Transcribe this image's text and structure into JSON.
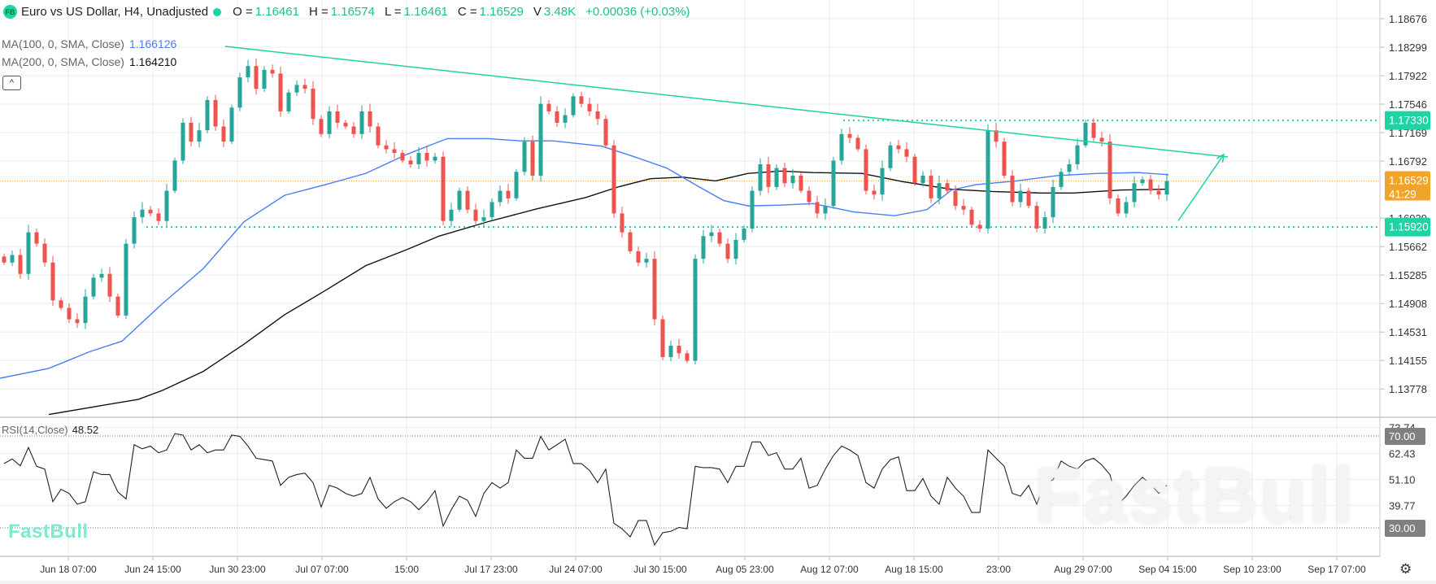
{
  "header": {
    "badge": "FB",
    "title": "Euro vs US Dollar, H4, Unadjusted",
    "status_color": "#1fd3a5",
    "ohlc": [
      {
        "label": "O =",
        "value": "1.16461"
      },
      {
        "label": "H =",
        "value": "1.16574"
      },
      {
        "label": "L =",
        "value": "1.16461"
      },
      {
        "label": "C =",
        "value": "1.16529"
      }
    ],
    "volume_label": "V",
    "volume": "3.48K",
    "change": "+0.00036 (+0.03%)"
  },
  "indicators": [
    {
      "label": "MA(100, 0, SMA, Close)",
      "value": "1.166126",
      "color": "#4a7cf7"
    },
    {
      "label": "MA(200, 0, SMA, Close)",
      "value": "1.164210",
      "color": "#111111"
    }
  ],
  "collapse_icon": "chevron-up-icon",
  "collapse_glyph": "^",
  "rsi": {
    "label": "RSI(14,Close)",
    "value": "48.52"
  },
  "logo": "FastBull",
  "watermark": "FastBull",
  "settings_icon": "gear-icon",
  "settings_glyph": "⚙",
  "colors": {
    "up": "#26a69a",
    "down": "#ef5350",
    "ma100": "#4a7cf7",
    "ma200": "#111111",
    "drawing": "#1fd3a5",
    "current_price": "#f2a32a",
    "rsi_level_badge": "#808080",
    "grid": "#ececec"
  },
  "chart_data": {
    "type": "candlestick",
    "title": "Euro vs US Dollar, H4, Unadjusted",
    "y_ticks": [
      "1.18676",
      "1.18299",
      "1.17922",
      "1.17546",
      "1.17169",
      "1.16792",
      "1.16039",
      "1.15662",
      "1.15285",
      "1.14908",
      "1.14531",
      "1.14155",
      "1.13778"
    ],
    "x_ticks": [
      "Jun 18 07:00",
      "Jun 24 15:00",
      "Jun 30 23:00",
      "Jul 07 07:00",
      "15:00",
      "Jul 17 23:00",
      "Jul 24 07:00",
      "Jul 30 15:00",
      "Aug 05 23:00",
      "Aug 12 07:00",
      "Aug 18 15:00",
      "23:00",
      "Aug 29 07:00",
      "Sep 04 15:00",
      "Sep 10 23:00",
      "Sep 17 07:00"
    ],
    "closes": [
      1.1545,
      1.1555,
      1.153,
      1.1585,
      1.157,
      1.1545,
      1.1495,
      1.1485,
      1.147,
      1.1465,
      1.15,
      1.1525,
      1.153,
      1.15,
      1.1475,
      1.157,
      1.1605,
      1.1615,
      1.161,
      1.16,
      1.164,
      1.168,
      1.173,
      1.1705,
      1.172,
      1.176,
      1.1725,
      1.1705,
      1.175,
      1.179,
      1.1805,
      1.1775,
      1.18,
      1.1795,
      1.1745,
      1.177,
      1.178,
      1.1775,
      1.1735,
      1.1715,
      1.1745,
      1.173,
      1.1725,
      1.1715,
      1.1745,
      1.1725,
      1.17,
      1.1695,
      1.169,
      1.168,
      1.1675,
      1.169,
      1.168,
      1.1685,
      1.16,
      1.1615,
      1.164,
      1.1615,
      1.16,
      1.1605,
      1.1625,
      1.164,
      1.163,
      1.1665,
      1.1705,
      1.166,
      1.1755,
      1.1745,
      1.173,
      1.174,
      1.1765,
      1.1755,
      1.1745,
      1.1735,
      1.17,
      1.161,
      1.1585,
      1.156,
      1.1545,
      1.155,
      1.147,
      1.142,
      1.1435,
      1.1425,
      1.1415,
      1.155,
      1.158,
      1.1585,
      1.157,
      1.155,
      1.1575,
      1.159,
      1.164,
      1.1675,
      1.1645,
      1.167,
      1.165,
      1.166,
      1.164,
      1.1625,
      1.161,
      1.162,
      1.168,
      1.1715,
      1.171,
      1.1695,
      1.164,
      1.1635,
      1.167,
      1.17,
      1.1695,
      1.1685,
      1.165,
      1.166,
      1.163,
      1.165,
      1.164,
      1.162,
      1.1615,
      1.1595,
      1.159,
      1.172,
      1.1705,
      1.166,
      1.1625,
      1.164,
      1.162,
      1.159,
      1.1605,
      1.1645,
      1.1665,
      1.1675,
      1.17,
      1.173,
      1.171,
      1.1705,
      1.163,
      1.161,
      1.1625,
      1.165,
      1.1655,
      1.164,
      1.1635,
      1.16529
    ],
    "ma100": [
      [
        -0.5,
        1.1392
      ],
      [
        5.5,
        1.1405
      ],
      [
        10.5,
        1.1427
      ],
      [
        14.5,
        1.1441
      ],
      [
        19.5,
        1.1491
      ],
      [
        24.5,
        1.1537
      ],
      [
        29.5,
        1.1599
      ],
      [
        34.5,
        1.1634
      ],
      [
        39.5,
        1.1648
      ],
      [
        44.5,
        1.1663
      ],
      [
        49.5,
        1.1688
      ],
      [
        54.5,
        1.1709
      ],
      [
        59.5,
        1.1709
      ],
      [
        63.5,
        1.1706
      ],
      [
        67.5,
        1.1706
      ],
      [
        73.5,
        1.1699
      ],
      [
        77.5,
        1.1685
      ],
      [
        81.5,
        1.167
      ],
      [
        85.5,
        1.1645
      ],
      [
        88.5,
        1.1627
      ],
      [
        91.5,
        1.162
      ],
      [
        95.5,
        1.1621
      ],
      [
        99.5,
        1.1623
      ],
      [
        104.5,
        1.1612
      ],
      [
        109.5,
        1.1607
      ],
      [
        113.5,
        1.1615
      ],
      [
        116.5,
        1.1641
      ],
      [
        119.5,
        1.1648
      ],
      [
        124.5,
        1.1653
      ],
      [
        129.5,
        1.166
      ],
      [
        134.5,
        1.1663
      ],
      [
        139.5,
        1.1664
      ],
      [
        143.2,
        1.166126
      ]
    ],
    "ma200": [
      [
        5.5,
        1.1344
      ],
      [
        11.5,
        1.1355
      ],
      [
        16.5,
        1.1364
      ],
      [
        19.5,
        1.1376
      ],
      [
        24.5,
        1.1401
      ],
      [
        29.5,
        1.1437
      ],
      [
        34.5,
        1.1476
      ],
      [
        39.5,
        1.1508
      ],
      [
        44.5,
        1.1541
      ],
      [
        49.5,
        1.1562
      ],
      [
        53.5,
        1.158
      ],
      [
        59.5,
        1.1599
      ],
      [
        65.5,
        1.1616
      ],
      [
        71.5,
        1.1631
      ],
      [
        75.5,
        1.1645
      ],
      [
        79.5,
        1.1656
      ],
      [
        83.5,
        1.1658
      ],
      [
        87.5,
        1.1653
      ],
      [
        91.5,
        1.1663
      ],
      [
        95.5,
        1.1666
      ],
      [
        99.5,
        1.1664
      ],
      [
        105.5,
        1.1663
      ],
      [
        110.5,
        1.1652
      ],
      [
        116.5,
        1.1642
      ],
      [
        121.5,
        1.1639
      ],
      [
        127.5,
        1.1637
      ],
      [
        131.5,
        1.1637
      ],
      [
        137.5,
        1.1641
      ],
      [
        143.2,
        1.16421
      ]
    ],
    "rsi": [
      58,
      60,
      57,
      65,
      56.8,
      55.6,
      41.4,
      46.8,
      45,
      40.3,
      41.4,
      54.4,
      53.2,
      53.2,
      45.6,
      42.6,
      66.2,
      64.4,
      65.6,
      62.7,
      63.9,
      71,
      70.4,
      63.9,
      66.2,
      62.7,
      63.9,
      63.9,
      70.4,
      69.8,
      65.6,
      60.3,
      59.7,
      59.1,
      48.5,
      52,
      53.2,
      53.8,
      49.7,
      39.1,
      48.5,
      47.3,
      45,
      43.8,
      45,
      52,
      42.6,
      38.5,
      41.4,
      43.2,
      41.4,
      37.9,
      41.4,
      46.2,
      30.8,
      37.9,
      43.8,
      42,
      35,
      45,
      49.7,
      47.3,
      49.7,
      63.9,
      60.3,
      60.3,
      69.8,
      63.9,
      66.2,
      68.6,
      58,
      58,
      55,
      49.7,
      55.6,
      32,
      29.6,
      26.1,
      33.2,
      33.2,
      22.6,
      27.9,
      28.5,
      30.2,
      29.6,
      56.8,
      56.2,
      56.2,
      55.6,
      49.7,
      56.8,
      56.8,
      67.4,
      67.4,
      61.5,
      62.7,
      55.6,
      55.6,
      60.3,
      47.3,
      48.5,
      55.6,
      61.5,
      65.6,
      63.9,
      61.5,
      49.7,
      47.3,
      55.6,
      59.7,
      60.9,
      46.2,
      46.2,
      51.5,
      43.8,
      40.3,
      52,
      47.3,
      43.8,
      36.7,
      36.7,
      63.9,
      60.3,
      56.8,
      45,
      43.8,
      48.5,
      40.3,
      49.7,
      50.9,
      59.1,
      56.8,
      55.6,
      59.1,
      60.3,
      57.4,
      53.2,
      40.3,
      43.8,
      48.5,
      52,
      49.1,
      45,
      48.52
    ],
    "rsi_ticks": [
      "73.74",
      "62.43",
      "51.10",
      "39.77"
    ],
    "rsi_levels": [
      "70.00",
      "30.00"
    ],
    "price_labels": {
      "resistance": "1.17330",
      "current": "1.16529",
      "countdown": "41:29",
      "support": "1.15920"
    },
    "horizontal_levels": {
      "resistance": 1.1733,
      "support": 1.1592,
      "current": 1.16529
    },
    "trendline": [
      [
        27.2,
        1.1831
      ],
      [
        150.5,
        1.16847
      ]
    ],
    "arrow": [
      [
        144.4,
        1.16003
      ],
      [
        150.0,
        1.1688
      ]
    ]
  }
}
